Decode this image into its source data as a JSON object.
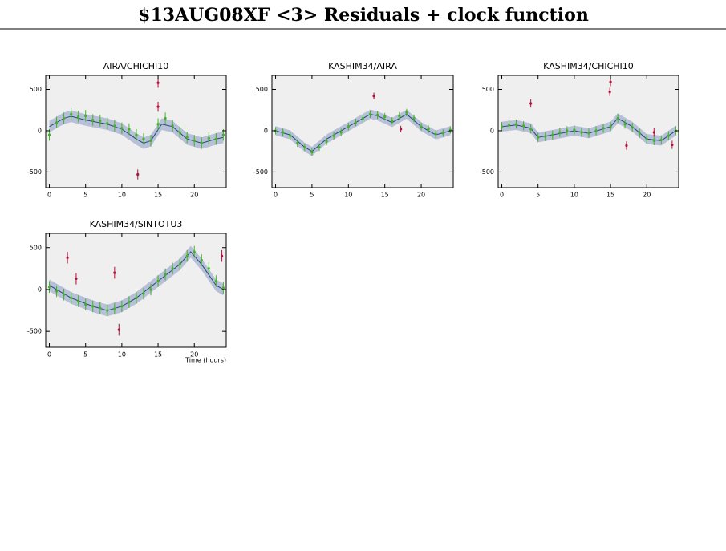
{
  "title": "$13AUG08XF <3> Residuals + clock function",
  "chart_data": [
    {
      "type": "scatter",
      "title": "AIRA/CHICHI10",
      "xlim": [
        -0.5,
        24.4
      ],
      "ylim": [
        -690,
        670
      ],
      "xticks": [
        0,
        5,
        10,
        15,
        20
      ],
      "yticks": [
        -500,
        0,
        500
      ],
      "background": "#efefef",
      "line": {
        "color": "#1f4f6f",
        "band_color": "#b8bfd8",
        "band": 70,
        "x": [
          0,
          2,
          3,
          5,
          8,
          10,
          12,
          13,
          14,
          15.5,
          17,
          19,
          21,
          23,
          24
        ],
        "values": [
          50,
          150,
          175,
          130,
          80,
          20,
          -100,
          -150,
          -120,
          80,
          50,
          -100,
          -150,
          -100,
          -80
        ]
      },
      "series": [
        {
          "color": "#44b12a",
          "error": 70,
          "x": [
            0,
            1,
            2,
            3,
            4,
            5,
            6,
            7,
            8,
            9,
            10,
            11,
            12,
            13,
            14,
            15,
            16,
            17,
            18,
            19,
            20,
            21,
            22,
            23,
            24
          ],
          "values": [
            -50,
            100,
            150,
            200,
            170,
            180,
            130,
            120,
            90,
            60,
            30,
            20,
            -50,
            -100,
            -120,
            80,
            150,
            60,
            -20,
            -80,
            -120,
            -150,
            -90,
            -100,
            -50
          ]
        },
        {
          "color": "#b0103a",
          "error": 60,
          "x": [
            12.2,
            15,
            15
          ],
          "values": [
            -530,
            580,
            290
          ]
        }
      ]
    },
    {
      "type": "scatter",
      "title": "KASHIM34/AIRA",
      "xlim": [
        -0.5,
        24.4
      ],
      "ylim": [
        -690,
        670
      ],
      "xticks": [
        0,
        5,
        10,
        15,
        20
      ],
      "yticks": [
        -500,
        0,
        500
      ],
      "background": "#efefef",
      "line": {
        "color": "#1f4f6f",
        "band_color": "#b8bfd8",
        "band": 55,
        "x": [
          0,
          2,
          4,
          5,
          7,
          10,
          13,
          14,
          16,
          18,
          20,
          22,
          24
        ],
        "values": [
          0,
          -50,
          -200,
          -250,
          -100,
          50,
          200,
          180,
          100,
          200,
          50,
          -50,
          0
        ]
      },
      "series": [
        {
          "color": "#44b12a",
          "error": 45,
          "x": [
            0,
            1,
            2,
            3,
            4,
            5,
            6,
            7,
            8,
            9,
            10,
            11,
            12,
            13,
            14,
            15,
            16,
            17,
            18,
            19,
            20,
            21,
            22,
            23,
            24
          ],
          "values": [
            0,
            -20,
            -60,
            -150,
            -200,
            -260,
            -200,
            -130,
            -60,
            -20,
            50,
            100,
            150,
            200,
            190,
            170,
            120,
            180,
            220,
            150,
            50,
            20,
            -40,
            -30,
            10
          ]
        },
        {
          "color": "#b0103a",
          "error": 40,
          "x": [
            13.5,
            17.2
          ],
          "values": [
            420,
            20
          ]
        }
      ]
    },
    {
      "type": "scatter",
      "title": "KASHIM34/CHICHI10",
      "xlim": [
        -0.5,
        24.4
      ],
      "ylim": [
        -690,
        670
      ],
      "xticks": [
        0,
        5,
        10,
        15,
        20
      ],
      "yticks": [
        -500,
        0,
        500
      ],
      "background": "#efefef",
      "line": {
        "color": "#1f4f6f",
        "band_color": "#b8bfd8",
        "band": 60,
        "x": [
          0,
          2,
          4,
          5,
          7,
          10,
          12,
          15,
          16,
          18,
          20,
          22,
          24
        ],
        "values": [
          50,
          70,
          30,
          -80,
          -50,
          0,
          -30,
          50,
          150,
          50,
          -100,
          -120,
          0
        ]
      },
      "series": [
        {
          "color": "#44b12a",
          "error": 55,
          "x": [
            0,
            1,
            2,
            3,
            4,
            5,
            6,
            7,
            8,
            9,
            10,
            11,
            12,
            13,
            14,
            15,
            16,
            17,
            18,
            19,
            20,
            21,
            22,
            23,
            24
          ],
          "values": [
            50,
            70,
            80,
            60,
            20,
            -80,
            -70,
            -50,
            -20,
            0,
            10,
            -20,
            -30,
            0,
            30,
            50,
            150,
            80,
            40,
            -30,
            -100,
            -120,
            -110,
            -60,
            0
          ]
        },
        {
          "color": "#b0103a",
          "error": 50,
          "x": [
            4,
            15,
            14.9,
            17.2,
            21,
            23.5
          ],
          "values": [
            330,
            590,
            470,
            -180,
            -20,
            -170
          ]
        }
      ]
    },
    {
      "type": "scatter",
      "title": "KASHIM34/SINTOTU3",
      "xlabel": "Time (hours)",
      "xlim": [
        -0.5,
        24.4
      ],
      "ylim": [
        -690,
        670
      ],
      "xticks": [
        0,
        5,
        10,
        15,
        20
      ],
      "yticks": [
        -500,
        0,
        500
      ],
      "background": "#efefef",
      "line": {
        "color": "#1f4f6f",
        "band_color": "#b8bfd8",
        "band": 70,
        "x": [
          0,
          3,
          6,
          8,
          10,
          12,
          15,
          18,
          19.5,
          21,
          23,
          24
        ],
        "values": [
          50,
          -100,
          -200,
          -250,
          -200,
          -100,
          100,
          300,
          450,
          300,
          50,
          0
        ]
      },
      "series": [
        {
          "color": "#44b12a",
          "error": 70,
          "x": [
            0,
            1,
            2,
            3,
            4,
            5,
            6,
            7,
            8,
            9,
            10,
            11,
            12,
            13,
            14,
            15,
            16,
            17,
            18,
            19,
            20,
            21,
            22,
            23,
            24
          ],
          "values": [
            30,
            -20,
            -60,
            -100,
            -140,
            -180,
            -200,
            -220,
            -250,
            -230,
            -200,
            -150,
            -100,
            -50,
            0,
            100,
            180,
            250,
            300,
            400,
            450,
            350,
            250,
            100,
            20
          ]
        },
        {
          "color": "#b0103a",
          "error": 70,
          "x": [
            2.5,
            3.7,
            9,
            9.6,
            23.8
          ],
          "values": [
            380,
            130,
            200,
            -480,
            400
          ]
        }
      ]
    }
  ]
}
